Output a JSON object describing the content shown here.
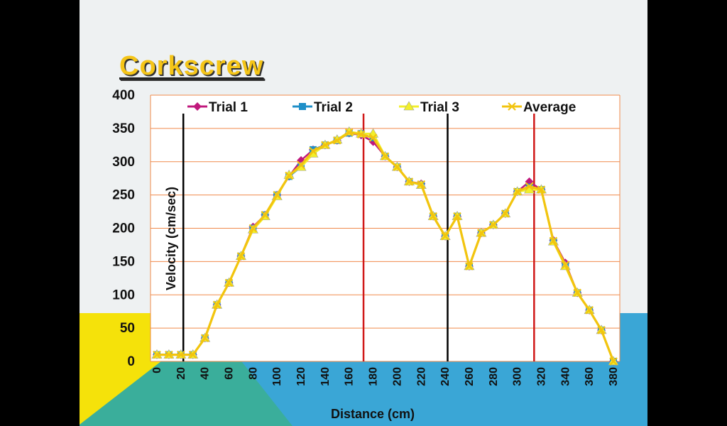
{
  "title": "Corkscrew",
  "chart_data": {
    "type": "line",
    "title": "",
    "xlabel": "Distance (cm)",
    "ylabel": "Velocity (cm/sec)",
    "xlim": [
      0,
      380
    ],
    "ylim": [
      0,
      400
    ],
    "yticks": [
      0,
      50,
      100,
      150,
      200,
      250,
      300,
      350,
      400
    ],
    "xticks": [
      0,
      20,
      40,
      60,
      80,
      100,
      120,
      140,
      160,
      180,
      200,
      220,
      240,
      260,
      280,
      300,
      320,
      340,
      360,
      380
    ],
    "x": [
      0,
      10,
      20,
      30,
      40,
      50,
      60,
      70,
      80,
      90,
      100,
      110,
      120,
      130,
      140,
      150,
      160,
      170,
      180,
      190,
      200,
      210,
      220,
      230,
      240,
      250,
      260,
      270,
      280,
      290,
      300,
      310,
      320,
      330,
      340,
      350,
      360,
      370,
      380
    ],
    "series": [
      {
        "name": "Trial 1",
        "color": "#c0187c",
        "marker": "diamond",
        "values": [
          10,
          10,
          10,
          10,
          35,
          85,
          118,
          158,
          202,
          220,
          250,
          278,
          302,
          318,
          325,
          332,
          343,
          340,
          330,
          308,
          292,
          270,
          267,
          218,
          188,
          218,
          143,
          193,
          205,
          222,
          255,
          270,
          258,
          182,
          148,
          103,
          77,
          47,
          0
        ]
      },
      {
        "name": "Trial 2",
        "color": "#1f8fc8",
        "marker": "square",
        "values": [
          10,
          10,
          10,
          10,
          35,
          85,
          118,
          158,
          200,
          220,
          250,
          278,
          292,
          318,
          325,
          332,
          343,
          342,
          336,
          308,
          292,
          270,
          265,
          218,
          188,
          218,
          143,
          193,
          205,
          222,
          255,
          262,
          258,
          180,
          143,
          103,
          77,
          47,
          0
        ]
      },
      {
        "name": "Trial 3",
        "color": "#f2ef2a",
        "marker": "triangle",
        "values": [
          10,
          10,
          10,
          10,
          35,
          85,
          118,
          158,
          198,
          218,
          248,
          280,
          292,
          312,
          325,
          333,
          345,
          342,
          342,
          308,
          292,
          270,
          265,
          218,
          188,
          218,
          143,
          193,
          205,
          222,
          255,
          258,
          258,
          180,
          143,
          103,
          77,
          47,
          0
        ]
      },
      {
        "name": "Average",
        "color": "#f2c40f",
        "marker": "x",
        "values": [
          10,
          10,
          10,
          10,
          35,
          85,
          118,
          158,
          200,
          220,
          250,
          279,
          295,
          316,
          325,
          332,
          344,
          341,
          336,
          308,
          292,
          270,
          266,
          218,
          188,
          218,
          143,
          193,
          205,
          222,
          255,
          263,
          258,
          181,
          145,
          103,
          77,
          47,
          0
        ]
      }
    ],
    "vertical_markers": [
      {
        "x": 22,
        "color": "#000000"
      },
      {
        "x": 172,
        "color": "#d01818"
      },
      {
        "x": 242,
        "color": "#000000"
      },
      {
        "x": 314,
        "color": "#d01818"
      }
    ],
    "grid": true,
    "legend": "top"
  }
}
